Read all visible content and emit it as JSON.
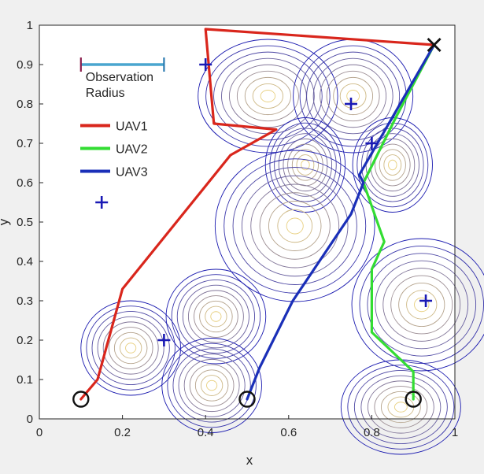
{
  "chart_data": {
    "type": "line",
    "xlabel": "x",
    "ylabel": "y",
    "xlim": [
      0,
      1
    ],
    "ylim": [
      0,
      1
    ],
    "x_ticks": [
      "0",
      "0.2",
      "0.4",
      "0.6",
      "0.8",
      "1"
    ],
    "y_ticks": [
      "0",
      "0.1",
      "0.2",
      "0.3",
      "0.4",
      "0.5",
      "0.6",
      "0.7",
      "0.8",
      "0.9",
      "1"
    ],
    "grid": false,
    "legend_position": "top-left",
    "observation_radius": {
      "label_line1": "Observation",
      "label_line2": "Radius",
      "x_range": [
        0.1,
        0.3
      ],
      "y": 0.9,
      "color": "#4aa5cf"
    },
    "series": [
      {
        "name": "UAV1",
        "color": "#d9261c",
        "points": [
          [
            0.1,
            0.05
          ],
          [
            0.14,
            0.1
          ],
          [
            0.2,
            0.33
          ],
          [
            0.46,
            0.67
          ],
          [
            0.57,
            0.735
          ],
          [
            0.42,
            0.75
          ],
          [
            0.4,
            0.99
          ],
          [
            0.95,
            0.95
          ]
        ]
      },
      {
        "name": "UAV2",
        "color": "#33dd33",
        "points": [
          [
            0.9,
            0.05
          ],
          [
            0.9,
            0.12
          ],
          [
            0.8,
            0.22
          ],
          [
            0.8,
            0.38
          ],
          [
            0.83,
            0.45
          ],
          [
            0.78,
            0.6
          ],
          [
            0.86,
            0.77
          ],
          [
            0.95,
            0.95
          ]
        ]
      },
      {
        "name": "UAV3",
        "color": "#1a2fb8",
        "points": [
          [
            0.5,
            0.05
          ],
          [
            0.53,
            0.13
          ],
          [
            0.61,
            0.3
          ],
          [
            0.75,
            0.52
          ],
          [
            0.78,
            0.6
          ],
          [
            0.77,
            0.62
          ],
          [
            0.95,
            0.95
          ]
        ]
      }
    ],
    "start_positions": [
      [
        0.1,
        0.05
      ],
      [
        0.5,
        0.05
      ],
      [
        0.9,
        0.05
      ]
    ],
    "targets": [
      [
        0.15,
        0.55
      ],
      [
        0.3,
        0.2
      ],
      [
        0.4,
        0.9
      ],
      [
        0.75,
        0.8
      ],
      [
        0.8,
        0.7
      ],
      [
        0.93,
        0.3
      ]
    ],
    "goal": [
      0.95,
      0.95
    ],
    "contour_peaks": [
      [
        0.22,
        0.18,
        0.05,
        0.05
      ],
      [
        0.425,
        0.26,
        0.05,
        0.05
      ],
      [
        0.415,
        0.085,
        0.05,
        0.05
      ],
      [
        0.55,
        0.82,
        0.07,
        0.06
      ],
      [
        0.755,
        0.82,
        0.06,
        0.06
      ],
      [
        0.64,
        0.645,
        0.04,
        0.05
      ],
      [
        0.85,
        0.645,
        0.04,
        0.05
      ],
      [
        0.615,
        0.49,
        0.08,
        0.08
      ],
      [
        0.92,
        0.29,
        0.07,
        0.07
      ],
      [
        0.87,
        0.03,
        0.06,
        0.05
      ]
    ]
  },
  "colors": {
    "contour_low": "#1b1bb0",
    "contour_high": "#e8d080",
    "marker": "#111111",
    "target": "#1a1ab5"
  }
}
